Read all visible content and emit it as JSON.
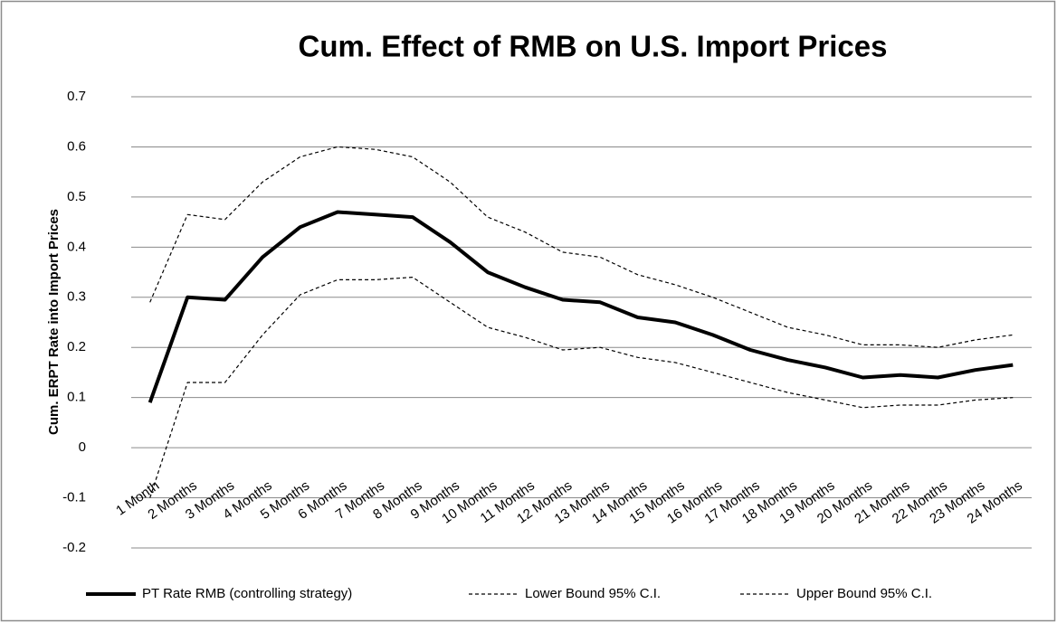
{
  "chart_data": {
    "type": "line",
    "title": "Cum. Effect of RMB on U.S. Import Prices",
    "y_label": "Cum. ERPT Rate into Import Prices",
    "categories": [
      "1 Month",
      "2 Months",
      "3 Months",
      "4 Months",
      "5 Months",
      "6 Months",
      "7 Months",
      "8 Months",
      "9 Months",
      "10 Months",
      "11 Months",
      "12 Months",
      "13 Months",
      "14 Months",
      "15 Months",
      "16 Months",
      "17 Months",
      "18 Months",
      "19 Months",
      "20 Months",
      "21 Months",
      "22 Months",
      "23 Months",
      "24 Months"
    ],
    "series": [
      {
        "name": "PT Rate  RMB (controlling strategy)",
        "color": "#000000",
        "line_style": "solid",
        "values": [
          0.09,
          0.3,
          0.295,
          0.38,
          0.44,
          0.47,
          0.465,
          0.46,
          0.41,
          0.35,
          0.32,
          0.295,
          0.29,
          0.26,
          0.25,
          0.225,
          0.195,
          0.175,
          0.16,
          0.14,
          0.145,
          0.14,
          0.155,
          0.165
        ]
      },
      {
        "name": "Lower Bound 95% C.I.",
        "color": "#000000",
        "line_style": "dashed",
        "values": [
          -0.1,
          0.13,
          0.13,
          0.225,
          0.305,
          0.335,
          0.335,
          0.34,
          0.29,
          0.24,
          0.22,
          0.195,
          0.2,
          0.18,
          0.17,
          0.15,
          0.13,
          0.11,
          0.095,
          0.08,
          0.085,
          0.085,
          0.095,
          0.1
        ]
      },
      {
        "name": "Upper Bound 95% C.I.",
        "color": "#000000",
        "line_style": "dashed",
        "values": [
          0.29,
          0.465,
          0.455,
          0.53,
          0.58,
          0.6,
          0.595,
          0.58,
          0.53,
          0.46,
          0.43,
          0.39,
          0.38,
          0.345,
          0.325,
          0.3,
          0.27,
          0.24,
          0.225,
          0.205,
          0.205,
          0.2,
          0.215,
          0.225
        ]
      }
    ],
    "ylim": [
      -0.2,
      0.7
    ],
    "yticks": [
      -0.2,
      -0.1,
      0,
      0.1,
      0.2,
      0.3,
      0.4,
      0.5,
      0.6,
      0.7
    ],
    "grid": true,
    "legend": "bottom"
  }
}
